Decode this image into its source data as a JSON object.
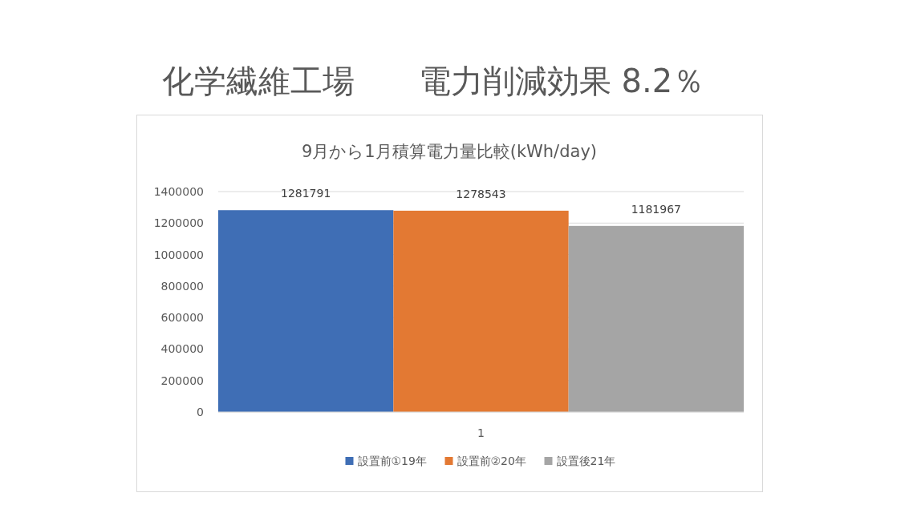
{
  "chart_data": {
    "type": "bar",
    "title": "化学繊維工場　　電力削減効果 8.2％",
    "subtitle": "9月から1月積算電力量比較(kWh/day)",
    "categories": [
      "1"
    ],
    "series": [
      {
        "name": "設置前①19年",
        "color": "#3f6eb5",
        "values": [
          1281791
        ]
      },
      {
        "name": "設置前②20年",
        "color": "#e37933",
        "values": [
          1278543
        ]
      },
      {
        "name": "設置後21年",
        "color": "#a5a5a5",
        "values": [
          1181967
        ]
      }
    ],
    "ylim": [
      0,
      1400000
    ],
    "yticks": [
      0,
      200000,
      400000,
      600000,
      800000,
      1000000,
      1200000,
      1400000
    ],
    "grid": "y",
    "legend": "bottom",
    "data_labels": true
  }
}
